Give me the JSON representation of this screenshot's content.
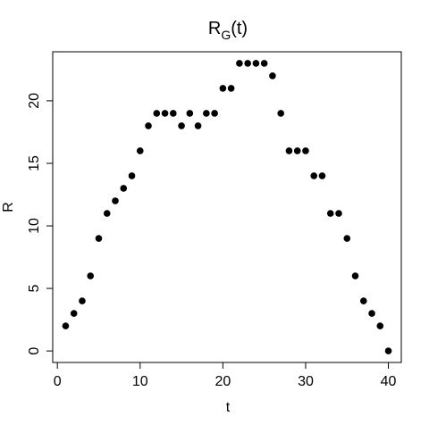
{
  "chart_data": {
    "type": "scatter",
    "title": {
      "main": "R",
      "subscript": "G",
      "suffix": "(t)"
    },
    "x_label": "t",
    "y_label": "R",
    "x": [
      1,
      2,
      3,
      4,
      5,
      6,
      7,
      8,
      9,
      10,
      11,
      12,
      13,
      14,
      15,
      16,
      17,
      18,
      19,
      20,
      21,
      22,
      23,
      24,
      25,
      26,
      27,
      28,
      29,
      30,
      31,
      32,
      33,
      34,
      35,
      36,
      37,
      38,
      39,
      40
    ],
    "values": [
      2,
      3,
      4,
      6,
      9,
      11,
      12,
      13,
      14,
      16,
      18,
      19,
      19,
      19,
      18,
      19,
      18,
      19,
      19,
      21,
      21,
      23,
      23,
      23,
      23,
      22,
      19,
      16,
      16,
      16,
      14,
      14,
      11,
      11,
      9,
      6,
      4,
      3,
      2,
      0
    ],
    "color": "#000000",
    "xlim": [
      -0.56,
      41.56
    ],
    "ylim": [
      -0.92,
      23.92
    ],
    "xticks": [
      0,
      10,
      20,
      30,
      40
    ],
    "yticks": [
      0,
      5,
      10,
      15,
      20
    ]
  }
}
